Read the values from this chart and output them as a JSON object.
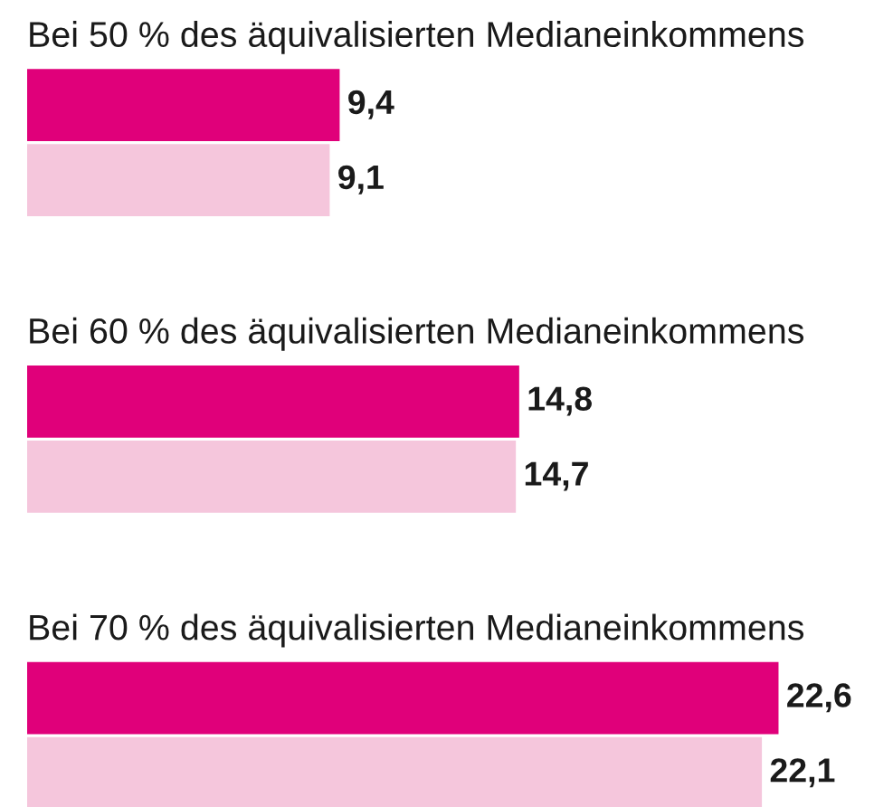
{
  "chart_data": {
    "type": "bar",
    "orientation": "horizontal",
    "categories": [
      "Bei 50 % des äquivalisierten Medianeinkommens",
      "Bei 60 % des äquivalisierten Medianeinkommens",
      "Bei 70 % des äquivalisierten Medianeinkommens"
    ],
    "series": [
      {
        "color": "#e0007a",
        "values": [
          9.4,
          14.8,
          22.6
        ],
        "value_labels": [
          "9,4",
          "14,8",
          "22,6"
        ]
      },
      {
        "color": "#f5c6dc",
        "values": [
          9.1,
          14.7,
          22.1
        ],
        "value_labels": [
          "9,1",
          "14,7",
          "22,1"
        ]
      }
    ]
  }
}
